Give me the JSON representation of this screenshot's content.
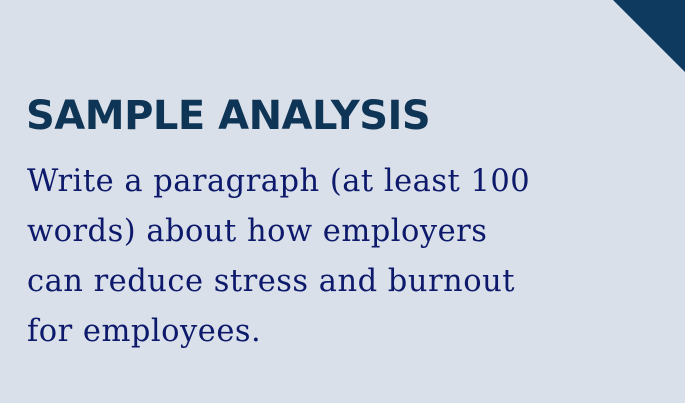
{
  "slide": {
    "title": "SAMPLE ANALYSIS",
    "prompt_lines": [
      "Write a paragraph (at least 100",
      "words) about how employers",
      "can reduce stress and burnout",
      "for employees."
    ]
  },
  "colors": {
    "background": "#dae0ea",
    "title": "#0f3556",
    "body_text": "#0d1a6b",
    "corner_accent": "#0e3a5f"
  }
}
